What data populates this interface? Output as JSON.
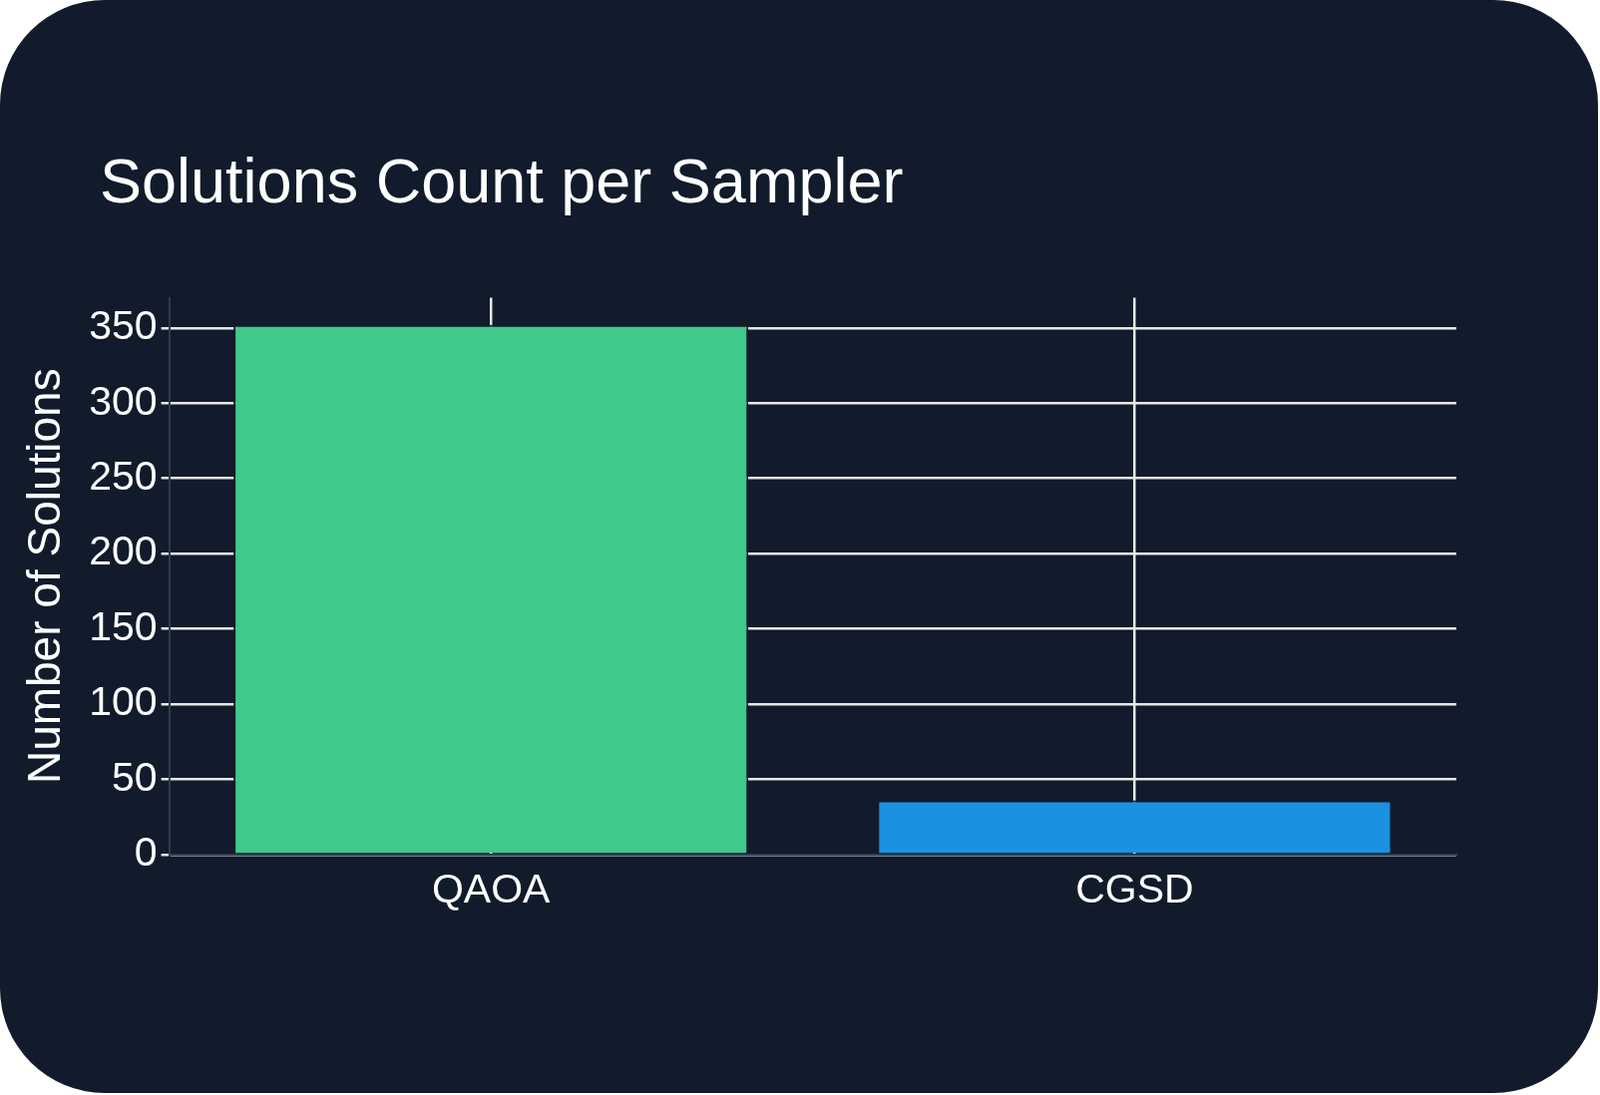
{
  "chart_data": {
    "type": "bar",
    "title": "Solutions Count per Sampler",
    "y_label": "Number of Solutions",
    "categories": [
      "QAOA",
      "CGSD"
    ],
    "values": [
      352,
      36
    ],
    "colors": [
      "#40c98a",
      "#1b91e0"
    ],
    "ylim": [
      0,
      370
    ],
    "yticks": [
      0,
      50,
      100,
      150,
      200,
      250,
      300,
      350
    ],
    "grid": true
  }
}
